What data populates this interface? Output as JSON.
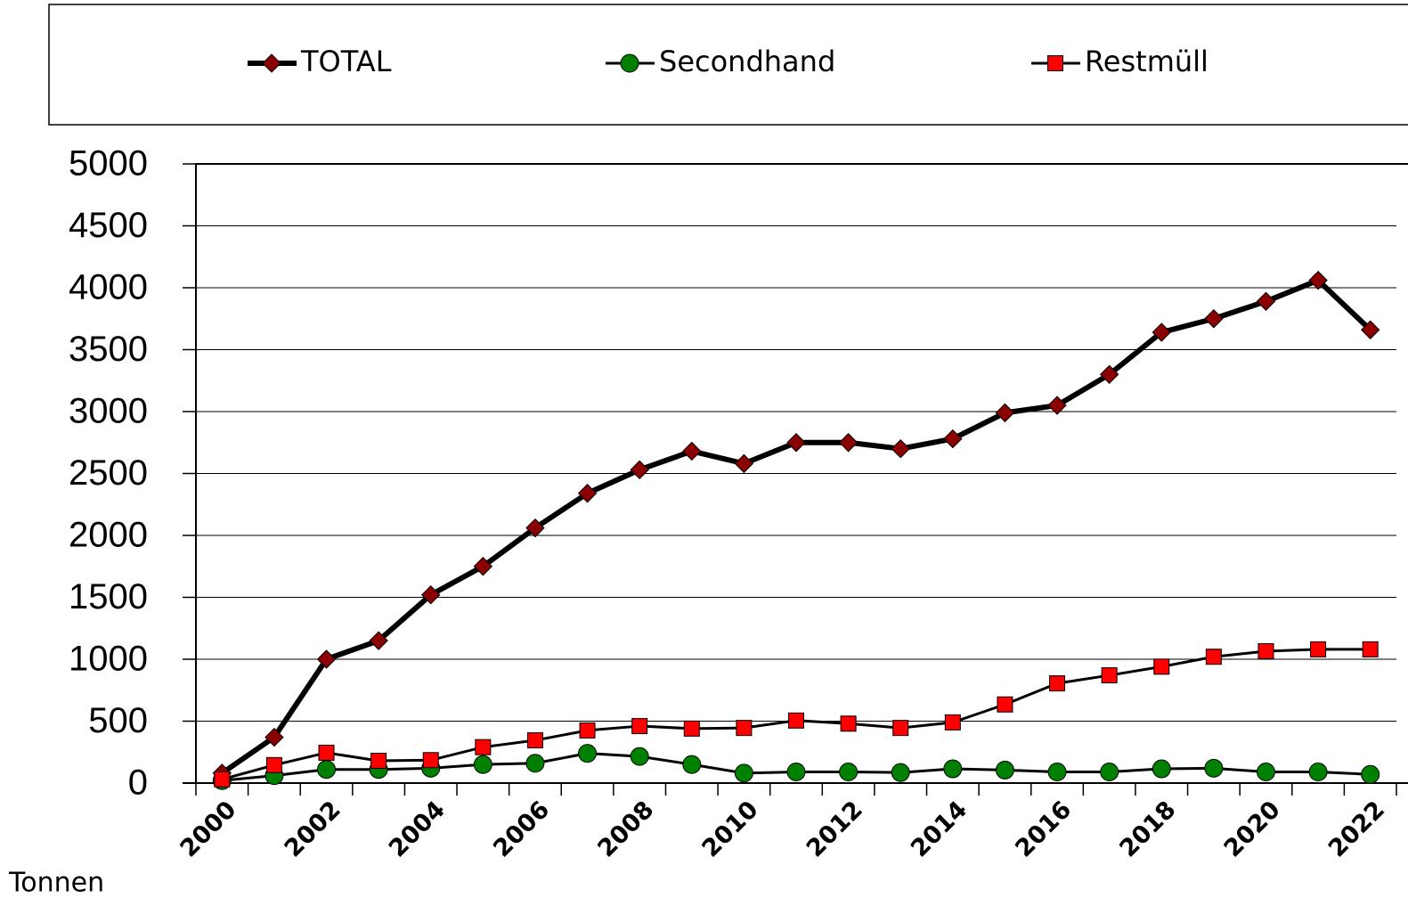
{
  "chart_data": {
    "type": "line",
    "y_unit_label": "Tonnen",
    "categories": [
      "2000",
      null,
      "2002",
      null,
      "2004",
      null,
      "2006",
      null,
      "2008",
      null,
      "2010",
      null,
      "2012",
      null,
      "2014",
      null,
      "2016",
      null,
      "2018",
      null,
      "2020",
      null,
      "2022"
    ],
    "series": [
      {
        "name": "TOTAL",
        "color": "#8b0000",
        "marker": "diamond",
        "values": [
          80,
          370,
          1000,
          1150,
          1520,
          1750,
          2060,
          2340,
          2530,
          2680,
          2580,
          2750,
          2750,
          2700,
          2780,
          2990,
          3050,
          3300,
          3640,
          3750,
          3890,
          4060,
          3660
        ]
      },
      {
        "name": "Secondhand",
        "color": "#008000",
        "marker": "circle",
        "values": [
          20,
          60,
          110,
          110,
          120,
          150,
          160,
          240,
          215,
          150,
          80,
          90,
          90,
          85,
          115,
          105,
          90,
          90,
          115,
          120,
          90,
          90,
          70
        ]
      },
      {
        "name": "Restmüll",
        "color": "#ff0000",
        "marker": "square",
        "values": [
          30,
          145,
          245,
          180,
          185,
          290,
          345,
          425,
          460,
          440,
          445,
          505,
          480,
          445,
          490,
          635,
          805,
          870,
          940,
          1020,
          1065,
          1080,
          1080
        ]
      }
    ],
    "ylim": [
      0,
      5000
    ],
    "yticks": [
      0,
      500,
      1000,
      1500,
      2000,
      2500,
      3000,
      3500,
      4000,
      4500,
      5000
    ],
    "grid": true,
    "legend": "top"
  }
}
